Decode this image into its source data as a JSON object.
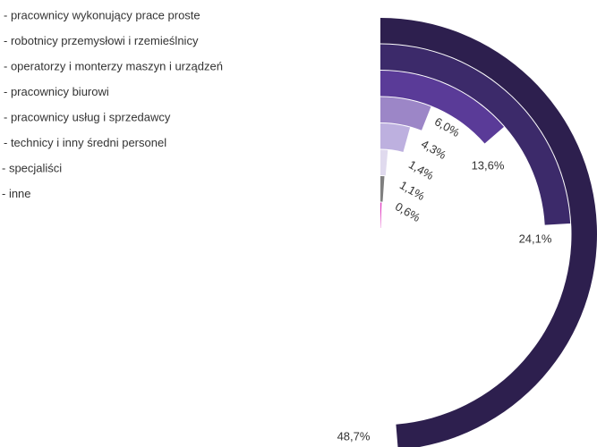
{
  "chart_data": {
    "type": "radial-bar",
    "categories": [
      "- pracownicy wykonujący  prace proste",
      "- robotnicy przemysłowi i rzemieślnicy",
      "- operatorzy i  monterzy maszyn i urządzeń",
      "- pracownicy biurowi",
      "- pracownicy usług i sprzedawcy",
      "- technicy i inny średni personel",
      "- specjaliści",
      "- inne"
    ],
    "values": [
      48.7,
      24.1,
      13.6,
      6.0,
      4.3,
      1.4,
      1.1,
      0.6
    ],
    "value_labels": [
      "48,7%",
      "24,1%",
      "13,6%",
      "6,0%",
      "4,3%",
      "1,4%",
      "1,1%",
      "0,6%"
    ],
    "colors": [
      "#2d1f4e",
      "#3c2a6a",
      "#5a3b98",
      "#9c86c7",
      "#bdb0df",
      "#e0daee",
      "#7f7f7f",
      "#e03cc0"
    ],
    "ylim": [
      0,
      100
    ]
  }
}
